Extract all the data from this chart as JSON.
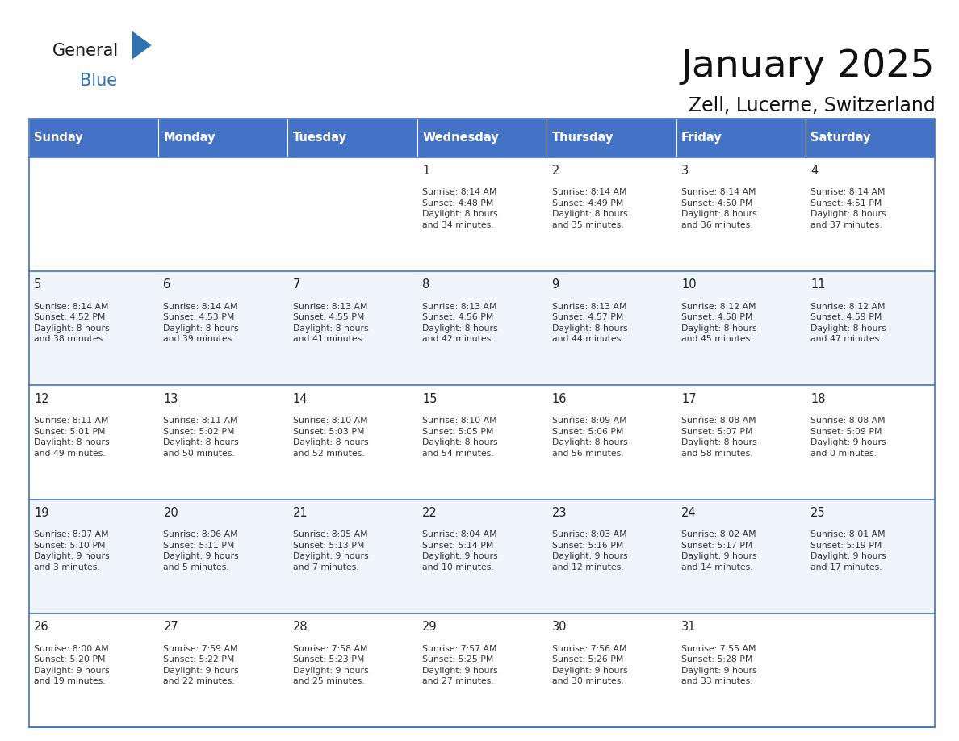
{
  "title": "January 2025",
  "subtitle": "Zell, Lucerne, Switzerland",
  "days_of_week": [
    "Sunday",
    "Monday",
    "Tuesday",
    "Wednesday",
    "Thursday",
    "Friday",
    "Saturday"
  ],
  "header_bg": "#4472C4",
  "header_text": "#FFFFFF",
  "cell_bg_light": "#F0F4FB",
  "cell_bg_white": "#FFFFFF",
  "grid_line_color": "#4472C4",
  "day_number_color": "#222222",
  "cell_text_color": "#333333",
  "title_color": "#111111",
  "subtitle_color": "#111111",
  "logo_general_color": "#1a1a1a",
  "logo_blue_color": "#2E74B5",
  "logo_triangle_color": "#2E74B5",
  "weeks": [
    [
      {
        "day": "",
        "info": ""
      },
      {
        "day": "",
        "info": ""
      },
      {
        "day": "",
        "info": ""
      },
      {
        "day": "1",
        "info": "Sunrise: 8:14 AM\nSunset: 4:48 PM\nDaylight: 8 hours\nand 34 minutes."
      },
      {
        "day": "2",
        "info": "Sunrise: 8:14 AM\nSunset: 4:49 PM\nDaylight: 8 hours\nand 35 minutes."
      },
      {
        "day": "3",
        "info": "Sunrise: 8:14 AM\nSunset: 4:50 PM\nDaylight: 8 hours\nand 36 minutes."
      },
      {
        "day": "4",
        "info": "Sunrise: 8:14 AM\nSunset: 4:51 PM\nDaylight: 8 hours\nand 37 minutes."
      }
    ],
    [
      {
        "day": "5",
        "info": "Sunrise: 8:14 AM\nSunset: 4:52 PM\nDaylight: 8 hours\nand 38 minutes."
      },
      {
        "day": "6",
        "info": "Sunrise: 8:14 AM\nSunset: 4:53 PM\nDaylight: 8 hours\nand 39 minutes."
      },
      {
        "day": "7",
        "info": "Sunrise: 8:13 AM\nSunset: 4:55 PM\nDaylight: 8 hours\nand 41 minutes."
      },
      {
        "day": "8",
        "info": "Sunrise: 8:13 AM\nSunset: 4:56 PM\nDaylight: 8 hours\nand 42 minutes."
      },
      {
        "day": "9",
        "info": "Sunrise: 8:13 AM\nSunset: 4:57 PM\nDaylight: 8 hours\nand 44 minutes."
      },
      {
        "day": "10",
        "info": "Sunrise: 8:12 AM\nSunset: 4:58 PM\nDaylight: 8 hours\nand 45 minutes."
      },
      {
        "day": "11",
        "info": "Sunrise: 8:12 AM\nSunset: 4:59 PM\nDaylight: 8 hours\nand 47 minutes."
      }
    ],
    [
      {
        "day": "12",
        "info": "Sunrise: 8:11 AM\nSunset: 5:01 PM\nDaylight: 8 hours\nand 49 minutes."
      },
      {
        "day": "13",
        "info": "Sunrise: 8:11 AM\nSunset: 5:02 PM\nDaylight: 8 hours\nand 50 minutes."
      },
      {
        "day": "14",
        "info": "Sunrise: 8:10 AM\nSunset: 5:03 PM\nDaylight: 8 hours\nand 52 minutes."
      },
      {
        "day": "15",
        "info": "Sunrise: 8:10 AM\nSunset: 5:05 PM\nDaylight: 8 hours\nand 54 minutes."
      },
      {
        "day": "16",
        "info": "Sunrise: 8:09 AM\nSunset: 5:06 PM\nDaylight: 8 hours\nand 56 minutes."
      },
      {
        "day": "17",
        "info": "Sunrise: 8:08 AM\nSunset: 5:07 PM\nDaylight: 8 hours\nand 58 minutes."
      },
      {
        "day": "18",
        "info": "Sunrise: 8:08 AM\nSunset: 5:09 PM\nDaylight: 9 hours\nand 0 minutes."
      }
    ],
    [
      {
        "day": "19",
        "info": "Sunrise: 8:07 AM\nSunset: 5:10 PM\nDaylight: 9 hours\nand 3 minutes."
      },
      {
        "day": "20",
        "info": "Sunrise: 8:06 AM\nSunset: 5:11 PM\nDaylight: 9 hours\nand 5 minutes."
      },
      {
        "day": "21",
        "info": "Sunrise: 8:05 AM\nSunset: 5:13 PM\nDaylight: 9 hours\nand 7 minutes."
      },
      {
        "day": "22",
        "info": "Sunrise: 8:04 AM\nSunset: 5:14 PM\nDaylight: 9 hours\nand 10 minutes."
      },
      {
        "day": "23",
        "info": "Sunrise: 8:03 AM\nSunset: 5:16 PM\nDaylight: 9 hours\nand 12 minutes."
      },
      {
        "day": "24",
        "info": "Sunrise: 8:02 AM\nSunset: 5:17 PM\nDaylight: 9 hours\nand 14 minutes."
      },
      {
        "day": "25",
        "info": "Sunrise: 8:01 AM\nSunset: 5:19 PM\nDaylight: 9 hours\nand 17 minutes."
      }
    ],
    [
      {
        "day": "26",
        "info": "Sunrise: 8:00 AM\nSunset: 5:20 PM\nDaylight: 9 hours\nand 19 minutes."
      },
      {
        "day": "27",
        "info": "Sunrise: 7:59 AM\nSunset: 5:22 PM\nDaylight: 9 hours\nand 22 minutes."
      },
      {
        "day": "28",
        "info": "Sunrise: 7:58 AM\nSunset: 5:23 PM\nDaylight: 9 hours\nand 25 minutes."
      },
      {
        "day": "29",
        "info": "Sunrise: 7:57 AM\nSunset: 5:25 PM\nDaylight: 9 hours\nand 27 minutes."
      },
      {
        "day": "30",
        "info": "Sunrise: 7:56 AM\nSunset: 5:26 PM\nDaylight: 9 hours\nand 30 minutes."
      },
      {
        "day": "31",
        "info": "Sunrise: 7:55 AM\nSunset: 5:28 PM\nDaylight: 9 hours\nand 33 minutes."
      },
      {
        "day": "",
        "info": ""
      }
    ]
  ]
}
